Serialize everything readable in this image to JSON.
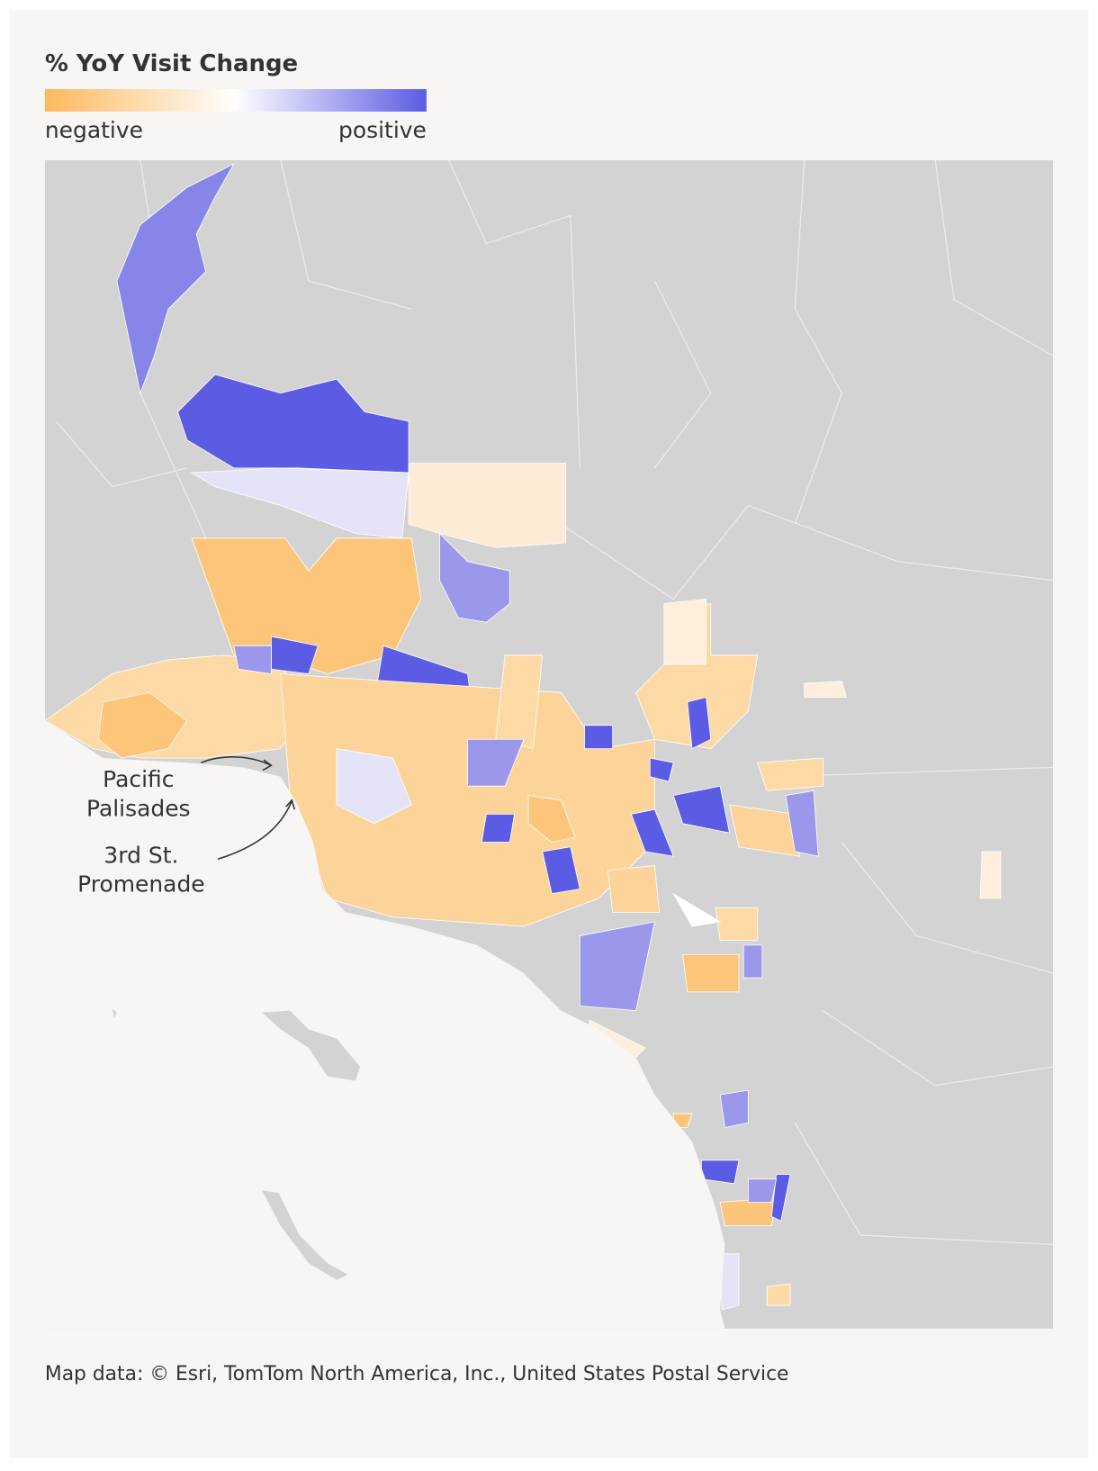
{
  "legend": {
    "title": "% YoY Visit Change",
    "low_label": "negative",
    "high_label": "positive"
  },
  "annotations": [
    {
      "lines": [
        "Pacific",
        "Palisades"
      ]
    },
    {
      "lines": [
        "3rd St.",
        "Promenade"
      ]
    }
  ],
  "footer": "Map data: © Esri, TomTom North America, Inc., United States Postal Service"
}
